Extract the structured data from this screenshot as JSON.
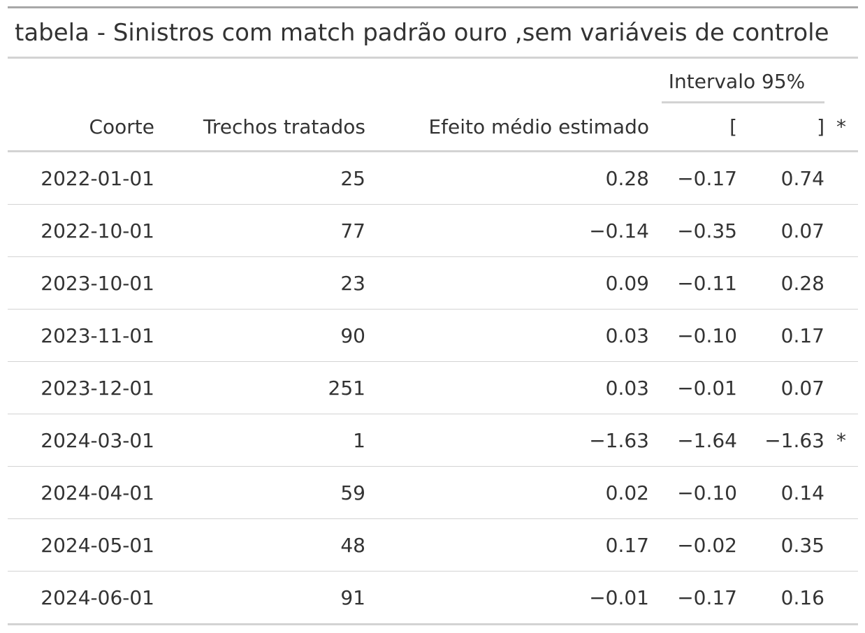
{
  "title": "tabela - Sinistros com match padrão ouro ,sem variáveis de controle",
  "spanner": "Intervalo 95%",
  "columns": {
    "coorte": "Coorte",
    "trechos": "Trechos tratados",
    "efeito": "Efeito médio estimado",
    "lower": "[",
    "upper": "]",
    "sig": "*"
  },
  "rows": [
    {
      "coorte": "2022-01-01",
      "trechos": "25",
      "efeito": "0.28",
      "lower": "−0.17",
      "upper": "0.74",
      "sig": ""
    },
    {
      "coorte": "2022-10-01",
      "trechos": "77",
      "efeito": "−0.14",
      "lower": "−0.35",
      "upper": "0.07",
      "sig": ""
    },
    {
      "coorte": "2023-10-01",
      "trechos": "23",
      "efeito": "0.09",
      "lower": "−0.11",
      "upper": "0.28",
      "sig": ""
    },
    {
      "coorte": "2023-11-01",
      "trechos": "90",
      "efeito": "0.03",
      "lower": "−0.10",
      "upper": "0.17",
      "sig": ""
    },
    {
      "coorte": "2023-12-01",
      "trechos": "251",
      "efeito": "0.03",
      "lower": "−0.01",
      "upper": "0.07",
      "sig": ""
    },
    {
      "coorte": "2024-03-01",
      "trechos": "1",
      "efeito": "−1.63",
      "lower": "−1.64",
      "upper": "−1.63",
      "sig": "*"
    },
    {
      "coorte": "2024-04-01",
      "trechos": "59",
      "efeito": "0.02",
      "lower": "−0.10",
      "upper": "0.14",
      "sig": ""
    },
    {
      "coorte": "2024-05-01",
      "trechos": "48",
      "efeito": "0.17",
      "lower": "−0.02",
      "upper": "0.35",
      "sig": ""
    },
    {
      "coorte": "2024-06-01",
      "trechos": "91",
      "efeito": "−0.01",
      "lower": "−0.17",
      "upper": "0.16",
      "sig": ""
    }
  ]
}
